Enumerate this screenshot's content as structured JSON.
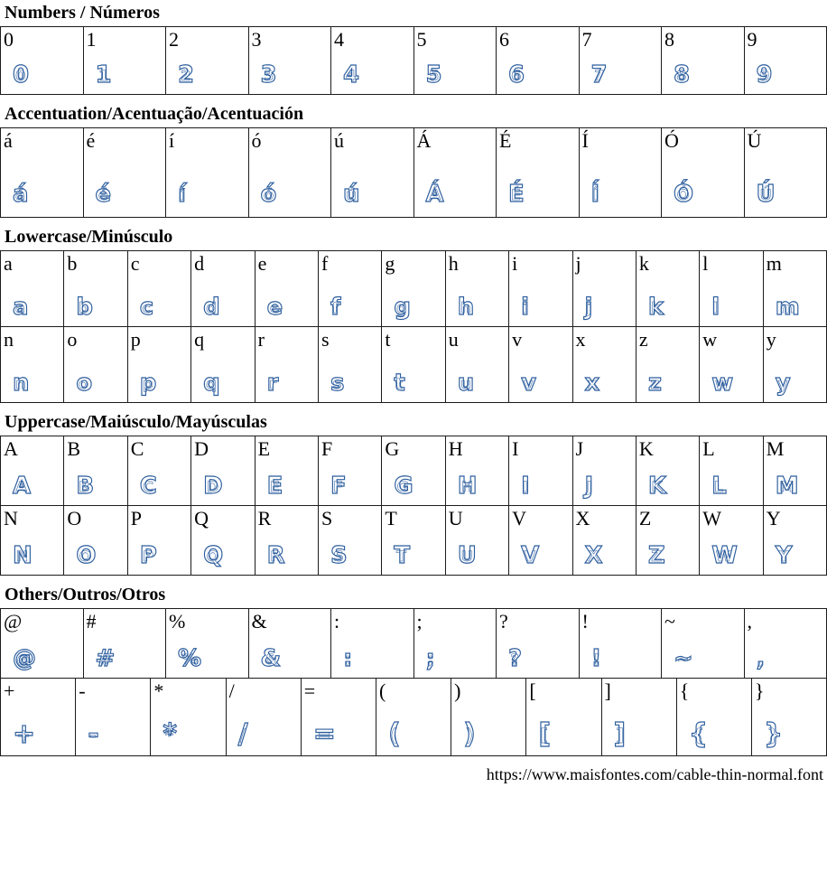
{
  "font_specimen": {
    "sections": [
      {
        "id": "numbers",
        "title": "Numbers / Números",
        "rows": [
          [
            "0",
            "1",
            "2",
            "3",
            "4",
            "5",
            "6",
            "7",
            "8",
            "9"
          ]
        ]
      },
      {
        "id": "accentuation",
        "title": "Accentuation/Acentuação/Acentuación",
        "rows": [
          [
            "á",
            "é",
            "í",
            "ó",
            "ú",
            "Á",
            "É",
            "Í",
            "Ó",
            "Ú"
          ]
        ]
      },
      {
        "id": "lowercase",
        "title": "Lowercase/Minúsculo",
        "rows": [
          [
            "a",
            "b",
            "c",
            "d",
            "e",
            "f",
            "g",
            "h",
            "i",
            "j",
            "k",
            "l",
            "m"
          ],
          [
            "n",
            "o",
            "p",
            "q",
            "r",
            "s",
            "t",
            "u",
            "v",
            "x",
            "z",
            "w",
            "y"
          ]
        ]
      },
      {
        "id": "uppercase",
        "title": "Uppercase/Maiúsculo/Mayúsculas",
        "rows": [
          [
            "A",
            "B",
            "C",
            "D",
            "E",
            "F",
            "G",
            "H",
            "I",
            "J",
            "K",
            "L",
            "M"
          ],
          [
            "N",
            "O",
            "P",
            "Q",
            "R",
            "S",
            "T",
            "U",
            "V",
            "X",
            "Z",
            "W",
            "Y"
          ]
        ]
      },
      {
        "id": "others",
        "title": "Others/Outros/Otros",
        "rows": [
          [
            "@",
            "#",
            "%",
            "&",
            ":",
            ";",
            "?",
            "!",
            "~",
            ","
          ],
          [
            "+",
            "-",
            "*",
            "/",
            "=",
            "(",
            ")",
            "[",
            "]",
            "{",
            "}"
          ]
        ]
      }
    ]
  },
  "footer": {
    "url": "https://www.maisfontes.com/cable-thin-normal.font"
  },
  "colors": {
    "glyph_blue": "#2d5e9e",
    "border": "#1c1c1c",
    "text": "#000000",
    "background": "#ffffff"
  }
}
